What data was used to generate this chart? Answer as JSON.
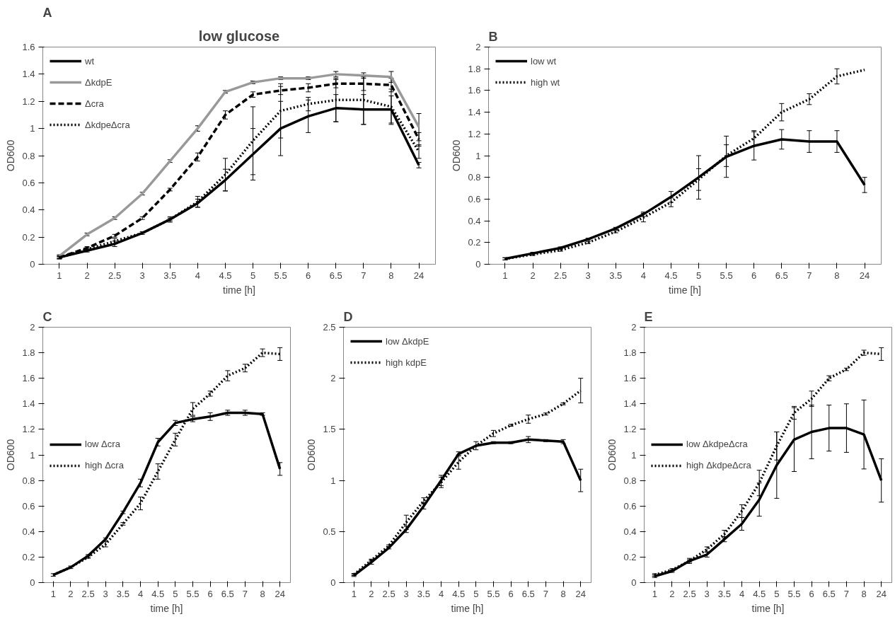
{
  "chart_data": [
    {
      "type": "line",
      "annotations": [
        "A"
      ],
      "title": "low glucose",
      "xlabel": "time [h]",
      "ylabel": "OD600",
      "categories": [
        "1",
        "2",
        "2.5",
        "3",
        "3.5",
        "4",
        "4.5",
        "5",
        "5.5",
        "6",
        "6.5",
        "7",
        "8",
        "24"
      ],
      "ylim": [
        0,
        1.6
      ],
      "yticks": [
        0,
        0.2,
        0.4,
        0.6,
        0.8,
        1,
        1.2,
        1.4,
        1.6
      ],
      "grid": false,
      "legend": "top left",
      "marker": "none",
      "series": [
        {
          "name": "wt",
          "color": "#000000",
          "line_style": "solid",
          "values": [
            0.05,
            0.1,
            0.15,
            0.23,
            0.33,
            0.45,
            0.62,
            0.81,
            1.0,
            1.09,
            1.15,
            1.14,
            1.14,
            0.73
          ],
          "errors": [
            0.01,
            0.01,
            0.02,
            0.01,
            0.02,
            0.03,
            0.08,
            0.19,
            0.2,
            0.12,
            0.1,
            0.11,
            0.1,
            0.02
          ]
        },
        {
          "name": "ΔkdpE",
          "color": "#999999",
          "line_style": "solid",
          "values": [
            0.06,
            0.22,
            0.34,
            0.52,
            0.76,
            1.0,
            1.27,
            1.34,
            1.37,
            1.37,
            1.4,
            1.39,
            1.38,
            1.01
          ],
          "errors": [
            0.01,
            0.01,
            0.01,
            0.01,
            0.01,
            0.02,
            0.01,
            0.01,
            0.01,
            0.01,
            0.02,
            0.02,
            0.04,
            0.1
          ]
        },
        {
          "name": "Δcra",
          "color": "#000000",
          "line_style": "dashed",
          "values": [
            0.05,
            0.12,
            0.21,
            0.34,
            0.55,
            0.79,
            1.1,
            1.25,
            1.28,
            1.3,
            1.33,
            1.33,
            1.32,
            0.92
          ],
          "errors": [
            0.01,
            0.01,
            0.01,
            0.01,
            0.01,
            0.03,
            0.03,
            0.02,
            0.03,
            0.03,
            0.03,
            0.05,
            0.05,
            0.05
          ]
        },
        {
          "name": "ΔkdpeΔcra",
          "color": "#000000",
          "line_style": "dotted",
          "values": [
            0.05,
            0.11,
            0.17,
            0.23,
            0.33,
            0.46,
            0.66,
            0.91,
            1.13,
            1.18,
            1.21,
            1.21,
            1.16,
            0.83
          ],
          "errors": [
            0.01,
            0.01,
            0.02,
            null,
            0.01,
            0.04,
            0.12,
            0.25,
            0.2,
            0.05,
            0.16,
            0.18,
            0.13,
            0.05
          ]
        }
      ]
    },
    {
      "type": "line",
      "annotations": [
        "B"
      ],
      "xlabel": "time [h]",
      "ylabel": "OD600",
      "categories": [
        "1",
        "2",
        "2.5",
        "3",
        "3.5",
        "4",
        "4.5",
        "5",
        "5.5",
        "6",
        "6.5",
        "7",
        "8",
        "24"
      ],
      "ylim": [
        0,
        2
      ],
      "yticks": [
        0,
        0.2,
        0.4,
        0.6,
        0.8,
        1,
        1.2,
        1.4,
        1.6,
        1.8,
        2
      ],
      "grid": false,
      "legend": "top left",
      "marker": "none",
      "series": [
        {
          "name": "low wt",
          "color": "#000000",
          "line_style": "solid",
          "values": [
            0.05,
            0.1,
            0.15,
            0.23,
            0.33,
            0.46,
            0.62,
            0.8,
            0.99,
            1.09,
            1.15,
            1.13,
            1.13,
            0.73
          ],
          "errors": [
            0.01,
            0.01,
            0.01,
            0.01,
            0.01,
            0.02,
            0.05,
            0.2,
            0.19,
            0.13,
            0.09,
            0.1,
            0.1,
            0.07
          ]
        },
        {
          "name": "high wt",
          "color": "#000000",
          "line_style": "dotted",
          "values": [
            0.05,
            0.09,
            0.13,
            0.2,
            0.3,
            0.43,
            0.57,
            0.78,
            1.0,
            1.16,
            1.4,
            1.52,
            1.73,
            1.79
          ],
          "errors": [
            0.01,
            0.01,
            0.01,
            0.01,
            0.01,
            0.04,
            0.04,
            0.1,
            0.1,
            0.07,
            0.08,
            0.05,
            0.07,
            null
          ]
        }
      ]
    },
    {
      "type": "line",
      "annotations": [
        "C"
      ],
      "xlabel": "time [h]",
      "ylabel": "OD600",
      "categories": [
        "1",
        "2",
        "2.5",
        "3",
        "3.5",
        "4",
        "4.5",
        "5",
        "5.5",
        "6",
        "6.5",
        "7",
        "8",
        "24"
      ],
      "ylim": [
        0,
        2
      ],
      "yticks": [
        0,
        0.2,
        0.4,
        0.6,
        0.8,
        1,
        1.2,
        1.4,
        1.6,
        1.8,
        2
      ],
      "grid": false,
      "legend": "left",
      "marker": "none",
      "series": [
        {
          "name": "low Δcra",
          "color": "#000000",
          "line_style": "solid",
          "values": [
            0.06,
            0.12,
            0.21,
            0.34,
            0.55,
            0.78,
            1.1,
            1.25,
            1.28,
            1.3,
            1.33,
            1.33,
            1.32,
            0.89
          ],
          "errors": [
            0.01,
            0.01,
            0.01,
            0.01,
            0.01,
            0.03,
            0.03,
            0.02,
            0.02,
            0.03,
            0.02,
            0.02,
            0.01,
            0.05
          ]
        },
        {
          "name": "high Δcra",
          "color": "#000000",
          "line_style": "dotted",
          "values": [
            0.06,
            0.12,
            0.2,
            0.3,
            0.46,
            0.62,
            0.87,
            1.12,
            1.36,
            1.48,
            1.62,
            1.68,
            1.8,
            1.79
          ],
          "errors": [
            null,
            null,
            0.01,
            0.02,
            0.01,
            0.05,
            0.06,
            0.05,
            0.05,
            0.02,
            0.04,
            0.03,
            0.03,
            0.05
          ]
        }
      ]
    },
    {
      "type": "line",
      "annotations": [
        "D"
      ],
      "xlabel": "time [h]",
      "ylabel": "OD600",
      "categories": [
        "1",
        "2",
        "2.5",
        "3",
        "3.5",
        "4",
        "4.5",
        "5",
        "5.5",
        "6",
        "6.5",
        "7",
        "8",
        "24"
      ],
      "ylim": [
        0,
        2.5
      ],
      "yticks": [
        0,
        0.5,
        1,
        1.5,
        2,
        2.5
      ],
      "grid": false,
      "legend": "top left",
      "marker": "none",
      "series": [
        {
          "name": "low ΔkdpE",
          "color": "#000000",
          "line_style": "solid",
          "values": [
            0.07,
            0.2,
            0.34,
            0.52,
            0.75,
            1.0,
            1.26,
            1.34,
            1.37,
            1.37,
            1.4,
            1.39,
            1.38,
            1.0
          ],
          "errors": [
            0.01,
            0.02,
            0.01,
            0.03,
            0.03,
            0.05,
            0.02,
            0.04,
            0.01,
            0.01,
            0.03,
            0.01,
            0.02,
            0.11
          ]
        },
        {
          "name": "high kdpE",
          "color": "#000000",
          "line_style": "dotted",
          "values": [
            0.08,
            0.22,
            0.36,
            0.59,
            0.8,
            0.98,
            1.18,
            1.34,
            1.46,
            1.54,
            1.6,
            1.65,
            1.75,
            1.88
          ],
          "errors": [
            0.01,
            0.01,
            0.01,
            0.07,
            0.03,
            0.05,
            0.07,
            null,
            0.03,
            0.01,
            0.04,
            0.01,
            0.01,
            0.12
          ]
        }
      ]
    },
    {
      "type": "line",
      "annotations": [
        "E"
      ],
      "xlabel": "time [h]",
      "ylabel": "OD600",
      "categories": [
        "1",
        "2",
        "2.5",
        "3",
        "3.5",
        "4",
        "4.5",
        "5",
        "5.5",
        "6",
        "6.5",
        "7",
        "8",
        "24"
      ],
      "ylim": [
        0,
        2
      ],
      "yticks": [
        0,
        0.2,
        0.4,
        0.6,
        0.8,
        1,
        1.2,
        1.4,
        1.6,
        1.8,
        2
      ],
      "grid": false,
      "legend": "left",
      "marker": "none",
      "series": [
        {
          "name": "low ΔkdpeΔcra",
          "color": "#000000",
          "line_style": "solid",
          "values": [
            0.05,
            0.09,
            0.17,
            0.22,
            0.34,
            0.46,
            0.65,
            0.92,
            1.12,
            1.18,
            1.21,
            1.21,
            1.16,
            0.8
          ],
          "errors": [
            0.01,
            0.01,
            0.02,
            0.02,
            0.02,
            0.05,
            0.13,
            0.26,
            0.25,
            0.21,
            0.18,
            0.19,
            0.27,
            0.17
          ]
        },
        {
          "name": "high ΔkdpeΔcra",
          "color": "#000000",
          "line_style": "dotted",
          "values": [
            0.06,
            0.1,
            0.17,
            0.26,
            0.38,
            0.56,
            0.78,
            1.07,
            1.33,
            1.44,
            1.6,
            1.67,
            1.8,
            1.79
          ],
          "errors": [
            0.01,
            0.01,
            0.01,
            0.02,
            0.03,
            0.05,
            0.1,
            0.11,
            0.05,
            0.06,
            0.02,
            0.01,
            0.02,
            0.05
          ]
        }
      ]
    }
  ]
}
